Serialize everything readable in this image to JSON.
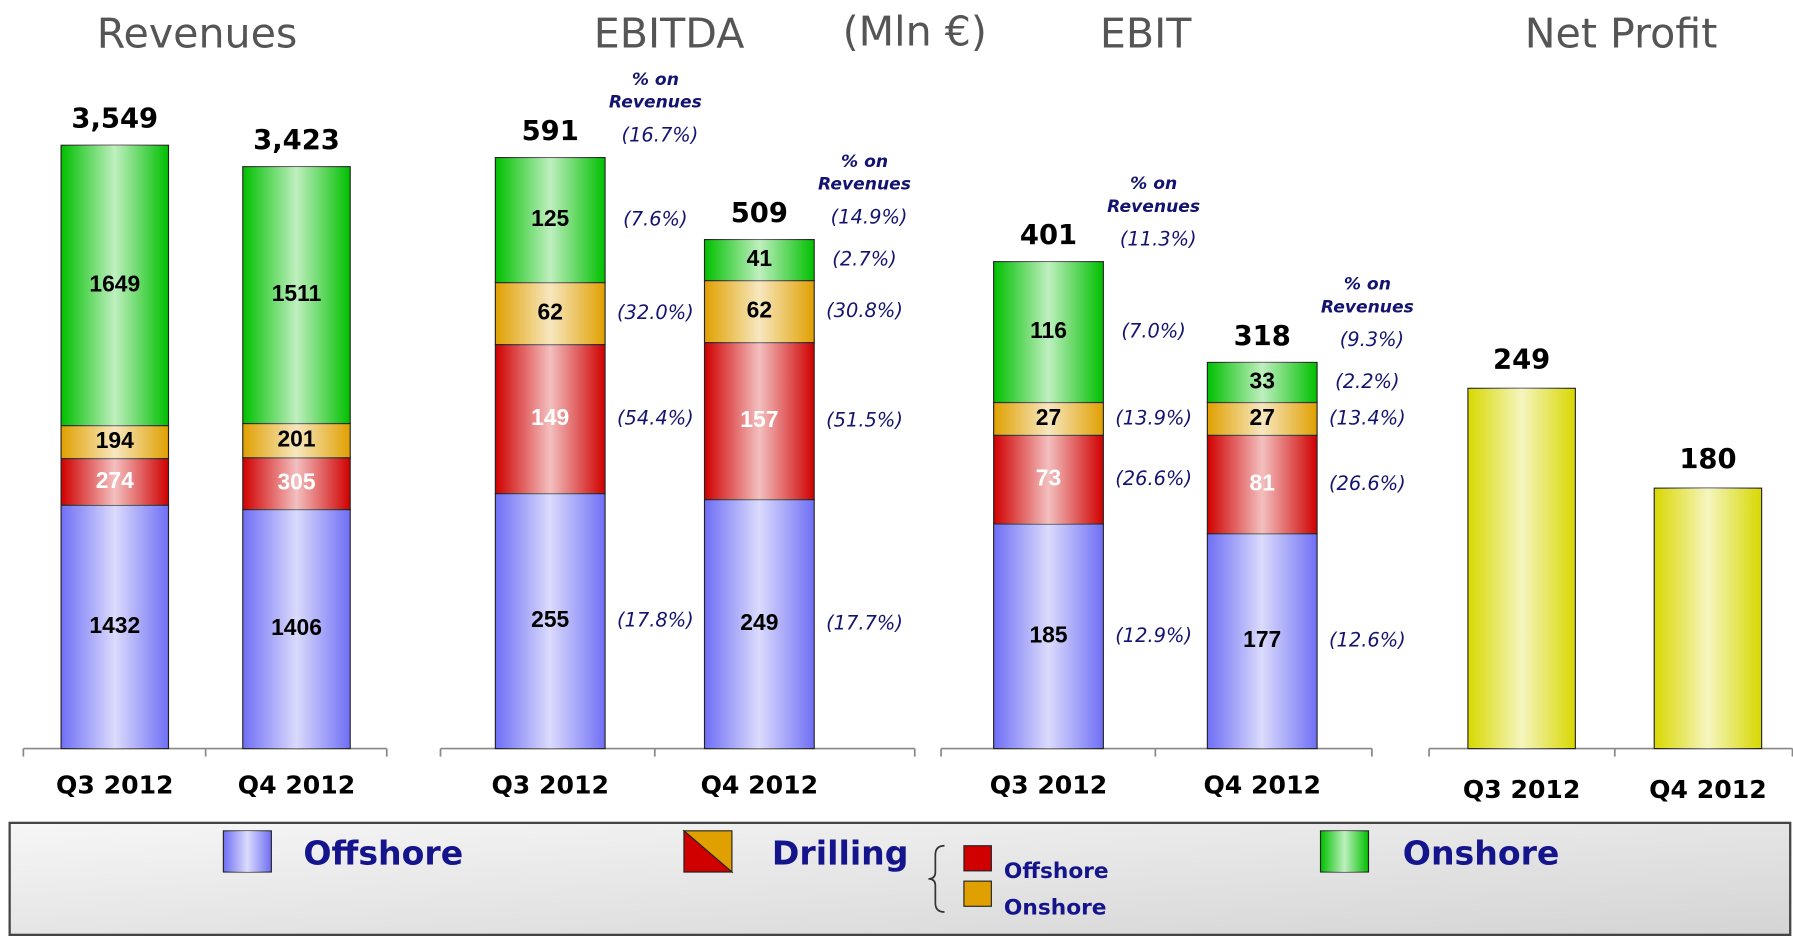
{
  "unit": "(Mln €)",
  "legend": [
    {
      "label": "Offshore",
      "color": "#6f6ff5"
    },
    {
      "label": "Drilling",
      "items": [
        {
          "label": "Offshore",
          "color": "#d00000"
        },
        {
          "label": "Onshore",
          "color": "#e0a000"
        }
      ]
    },
    {
      "label": "Onshore",
      "color": "#00c000"
    }
  ],
  "chart_data": [
    {
      "type": "bar",
      "stacked": true,
      "title": "Revenues",
      "categories": [
        "Q3 2012",
        "Q4 2012"
      ],
      "ylim": [
        0,
        4000
      ],
      "totals": [
        3549,
        3423
      ],
      "total_labels": [
        "3,549",
        "3,423"
      ],
      "series": [
        {
          "color": "#6f6ff5",
          "values": [
            1432,
            1406
          ]
        },
        {
          "color": "#d00000",
          "label_color": "#ffffff",
          "values": [
            274,
            305
          ]
        },
        {
          "color": "#e0a000",
          "values": [
            194,
            201
          ]
        },
        {
          "color": "#00c000",
          "values": [
            1649,
            1511
          ]
        }
      ]
    },
    {
      "type": "bar",
      "stacked": true,
      "title": "EBITDA",
      "categories": [
        "Q3 2012",
        "Q4 2012"
      ],
      "ylim": [
        0,
        680
      ],
      "totals": [
        591,
        509
      ],
      "margin_note": [
        "% on",
        "Revenues"
      ],
      "total_margins": [
        16.7,
        14.9
      ],
      "total_margin_labels": [
        "(16.7%)",
        "(14.9%)"
      ],
      "series": [
        {
          "color": "#6f6ff5",
          "values": [
            255,
            249
          ],
          "margins": [
            17.8,
            17.7
          ],
          "margin_labels": [
            "(17.8%)",
            "(17.7%)"
          ]
        },
        {
          "color": "#d00000",
          "label_color": "#ffffff",
          "values": [
            149,
            157
          ],
          "margins": [
            54.4,
            51.5
          ],
          "margin_labels": [
            "(54.4%)",
            "(51.5%)"
          ]
        },
        {
          "color": "#e0a000",
          "values": [
            62,
            62
          ],
          "margins": [
            32.0,
            30.8
          ],
          "margin_labels": [
            "(32.0%)",
            "(30.8%)"
          ]
        },
        {
          "color": "#00c000",
          "values": [
            125,
            41
          ],
          "margins": [
            7.6,
            2.7
          ],
          "margin_labels": [
            "(7.6%)",
            "(2.7%)"
          ]
        }
      ]
    },
    {
      "type": "bar",
      "stacked": true,
      "title": "EBIT",
      "categories": [
        "Q3 2012",
        "Q4 2012"
      ],
      "ylim": [
        0,
        560
      ],
      "totals": [
        401,
        318
      ],
      "margin_note": [
        "% on",
        "Revenues"
      ],
      "total_margins": [
        11.3,
        9.3
      ],
      "total_margin_labels": [
        "(11.3%)",
        "(9.3%)"
      ],
      "series": [
        {
          "color": "#6f6ff5",
          "values": [
            185,
            177
          ],
          "margins": [
            12.9,
            12.6
          ],
          "margin_labels": [
            "(12.9%)",
            "(12.6%)"
          ]
        },
        {
          "color": "#d00000",
          "label_color": "#ffffff",
          "values": [
            73,
            81
          ],
          "margins": [
            26.6,
            26.6
          ],
          "margin_labels": [
            "(26.6%)",
            "(26.6%)"
          ]
        },
        {
          "color": "#e0a000",
          "values": [
            27,
            27
          ],
          "margins": [
            13.9,
            13.4
          ],
          "margin_labels": [
            "(13.9%)",
            "(13.4%)"
          ]
        },
        {
          "color": "#00c000",
          "values": [
            116,
            33
          ],
          "margins": [
            7.0,
            2.2
          ],
          "margin_labels": [
            "(7.0%)",
            "(2.2%)"
          ]
        }
      ]
    },
    {
      "type": "bar",
      "title": "Net Profit",
      "categories": [
        "Q3 2012",
        "Q4 2012"
      ],
      "ylim": [
        0,
        470
      ],
      "series": [
        {
          "color": "#d8d800",
          "values": [
            249,
            180
          ]
        }
      ]
    }
  ]
}
